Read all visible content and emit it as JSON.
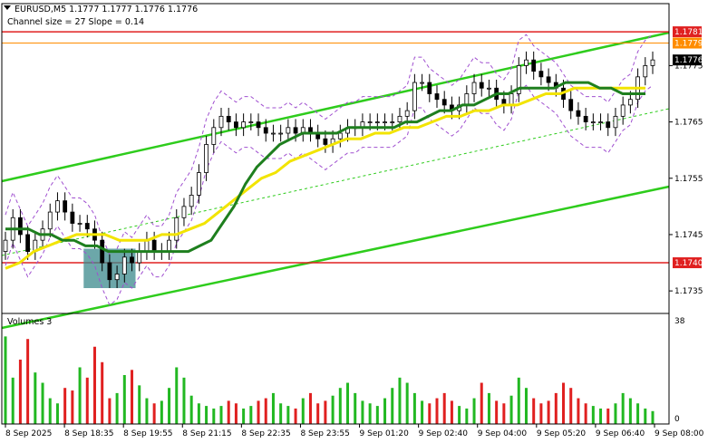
{
  "header": {
    "symbol_line": "EURUSD,M5  1.1777 1.1777 1.1776 1.1776",
    "indicator_line": "Channel size = 27 Slope = 0.14"
  },
  "volume_panel": {
    "title": "Volumes 3",
    "max_label": "38",
    "zero_label": "0"
  },
  "chart_data": {
    "type": "candlestick",
    "symbol": "EURUSD",
    "timeframe": "M5",
    "ohlc_last": {
      "open": 1.1777,
      "high": 1.1777,
      "low": 1.1776,
      "close": 1.1776
    },
    "channel": {
      "size": 27,
      "slope": 0.14
    },
    "ylim": [
      1.1731,
      1.1786
    ],
    "y_ticks": [
      1.1775,
      1.1765,
      1.1755,
      1.1745,
      1.1735
    ],
    "x_ticks": [
      "8 Sep 2025",
      "8 Sep 18:35",
      "8 Sep 19:55",
      "8 Sep 21:15",
      "8 Sep 22:35",
      "8 Sep 23:55",
      "9 Sep 01:20",
      "9 Sep 02:40",
      "9 Sep 04:00",
      "9 Sep 05:20",
      "9 Sep 06:40",
      "9 Sep 08:00"
    ],
    "price_levels": [
      {
        "value": 1.1781,
        "label": "1.1781",
        "color": "#e02020"
      },
      {
        "value": 1.174,
        "label": "1.1740",
        "color": "#e02020"
      }
    ],
    "price_tags": [
      {
        "value": 1.1779,
        "label": "1.1779",
        "color": "#ff8c00"
      },
      {
        "value": 1.1776,
        "label": "1.1776",
        "color": "#000000"
      }
    ],
    "closes": [
      1.1744,
      1.1748,
      1.1745,
      1.1742,
      1.1744,
      1.1746,
      1.1749,
      1.1751,
      1.1749,
      1.1747,
      1.1747,
      1.1746,
      1.1744,
      1.174,
      1.1737,
      1.1738,
      1.1741,
      1.174,
      1.1742,
      1.1744,
      1.1742,
      1.1742,
      1.1744,
      1.1748,
      1.175,
      1.1752,
      1.1756,
      1.1761,
      1.1764,
      1.1766,
      1.1765,
      1.1764,
      1.1765,
      1.1765,
      1.1764,
      1.1763,
      1.1763,
      1.1763,
      1.1764,
      1.1763,
      1.1764,
      1.1763,
      1.1762,
      1.1761,
      1.1762,
      1.1763,
      1.1764,
      1.1764,
      1.1765,
      1.1765,
      1.1765,
      1.1765,
      1.1765,
      1.1766,
      1.1767,
      1.1772,
      1.1772,
      1.177,
      1.1769,
      1.1768,
      1.1767,
      1.1768,
      1.177,
      1.1772,
      1.1771,
      1.1771,
      1.1769,
      1.1768,
      1.177,
      1.1775,
      1.1776,
      1.1774,
      1.1773,
      1.1772,
      1.1771,
      1.1769,
      1.1767,
      1.1766,
      1.1765,
      1.1765,
      1.1765,
      1.1764,
      1.1766,
      1.1768,
      1.1769,
      1.1773,
      1.1775,
      1.1776
    ],
    "ma_green": [
      1.1746,
      1.1746,
      1.1746,
      1.1745,
      1.1745,
      1.1744,
      1.1744,
      1.1743,
      1.1743,
      1.1742,
      1.1742,
      1.1742,
      1.1742,
      1.1742,
      1.1742,
      1.1742,
      1.1742,
      1.1743,
      1.1744,
      1.1747,
      1.175,
      1.1754,
      1.1757,
      1.1759,
      1.1761,
      1.1762,
      1.1763,
      1.1763,
      1.1763,
      1.1763,
      1.1764,
      1.1764,
      1.1764,
      1.1764,
      1.1764,
      1.1765,
      1.1765,
      1.1766,
      1.1767,
      1.1767,
      1.1768,
      1.1768,
      1.1769,
      1.177,
      1.177,
      1.1771,
      1.1771,
      1.1771,
      1.1771,
      1.1772,
      1.1772,
      1.1772,
      1.1771,
      1.1771,
      1.177,
      1.177,
      1.177
    ],
    "ma_yellow": [
      1.1739,
      1.174,
      1.1742,
      1.1743,
      1.1744,
      1.1745,
      1.1745,
      1.1745,
      1.1744,
      1.1744,
      1.1744,
      1.1745,
      1.1745,
      1.1746,
      1.1747,
      1.1749,
      1.1751,
      1.1753,
      1.1755,
      1.1756,
      1.1758,
      1.1759,
      1.176,
      1.1761,
      1.1762,
      1.1762,
      1.1763,
      1.1763,
      1.1764,
      1.1764,
      1.1765,
      1.1766,
      1.1766,
      1.1767,
      1.1767,
      1.1768,
      1.1768,
      1.1769,
      1.177,
      1.177,
      1.1771,
      1.1771,
      1.1771,
      1.1771,
      1.1771,
      1.1771
    ],
    "volume": [
      34,
      18,
      25,
      33,
      20,
      16,
      10,
      8,
      14,
      13,
      22,
      18,
      30,
      24,
      10,
      12,
      19,
      21,
      15,
      10,
      8,
      9,
      14,
      22,
      18,
      11,
      8,
      7,
      6,
      7,
      9,
      8,
      6,
      7,
      9,
      10,
      12,
      8,
      7,
      6,
      10,
      12,
      8,
      9,
      11,
      14,
      16,
      12,
      9,
      8,
      7,
      10,
      14,
      18,
      16,
      12,
      9,
      8,
      10,
      12,
      9,
      7,
      6,
      10,
      16,
      12,
      9,
      8,
      11,
      18,
      14,
      10,
      8,
      9,
      12,
      16,
      14,
      10,
      8,
      7,
      6,
      6,
      8,
      12,
      10,
      8,
      6,
      5
    ],
    "volume_ylim": [
      0,
      38
    ]
  }
}
